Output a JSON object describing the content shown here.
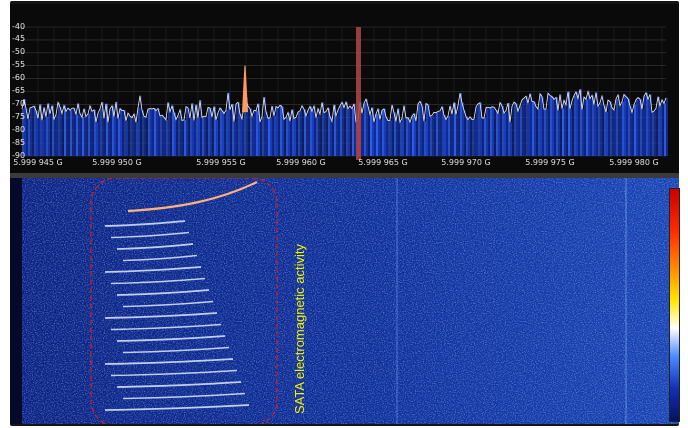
{
  "spectrum": {
    "y_ticks": [
      "-40",
      "-45",
      "-50",
      "-55",
      "-60",
      "-65",
      "-70",
      "-75",
      "-80",
      "-85",
      "-90"
    ],
    "x_ticks": [
      "5.999 945 G",
      "5.999 950 G",
      "5.999 955 G",
      "5.999 960 G",
      "5.999 965 G",
      "5.999 970 G",
      "5.999 975 G",
      "5.999 980 G"
    ],
    "peak_level": -55,
    "noise_floor": -73,
    "colors": {
      "trace": "#f0f0f0",
      "fill": "#1a3fc8",
      "peak": "#ff9a5a",
      "marker": "#b04545",
      "grid": "#3a3a3a"
    }
  },
  "waterfall": {
    "annotation": "SATA electromagnetic activity",
    "highlight_color": "#c8202a",
    "colors": {
      "background": "#0c2a8c",
      "streak": "#cfe4ff"
    }
  },
  "colorbar": {
    "icon": "colorbar-gradient"
  }
}
